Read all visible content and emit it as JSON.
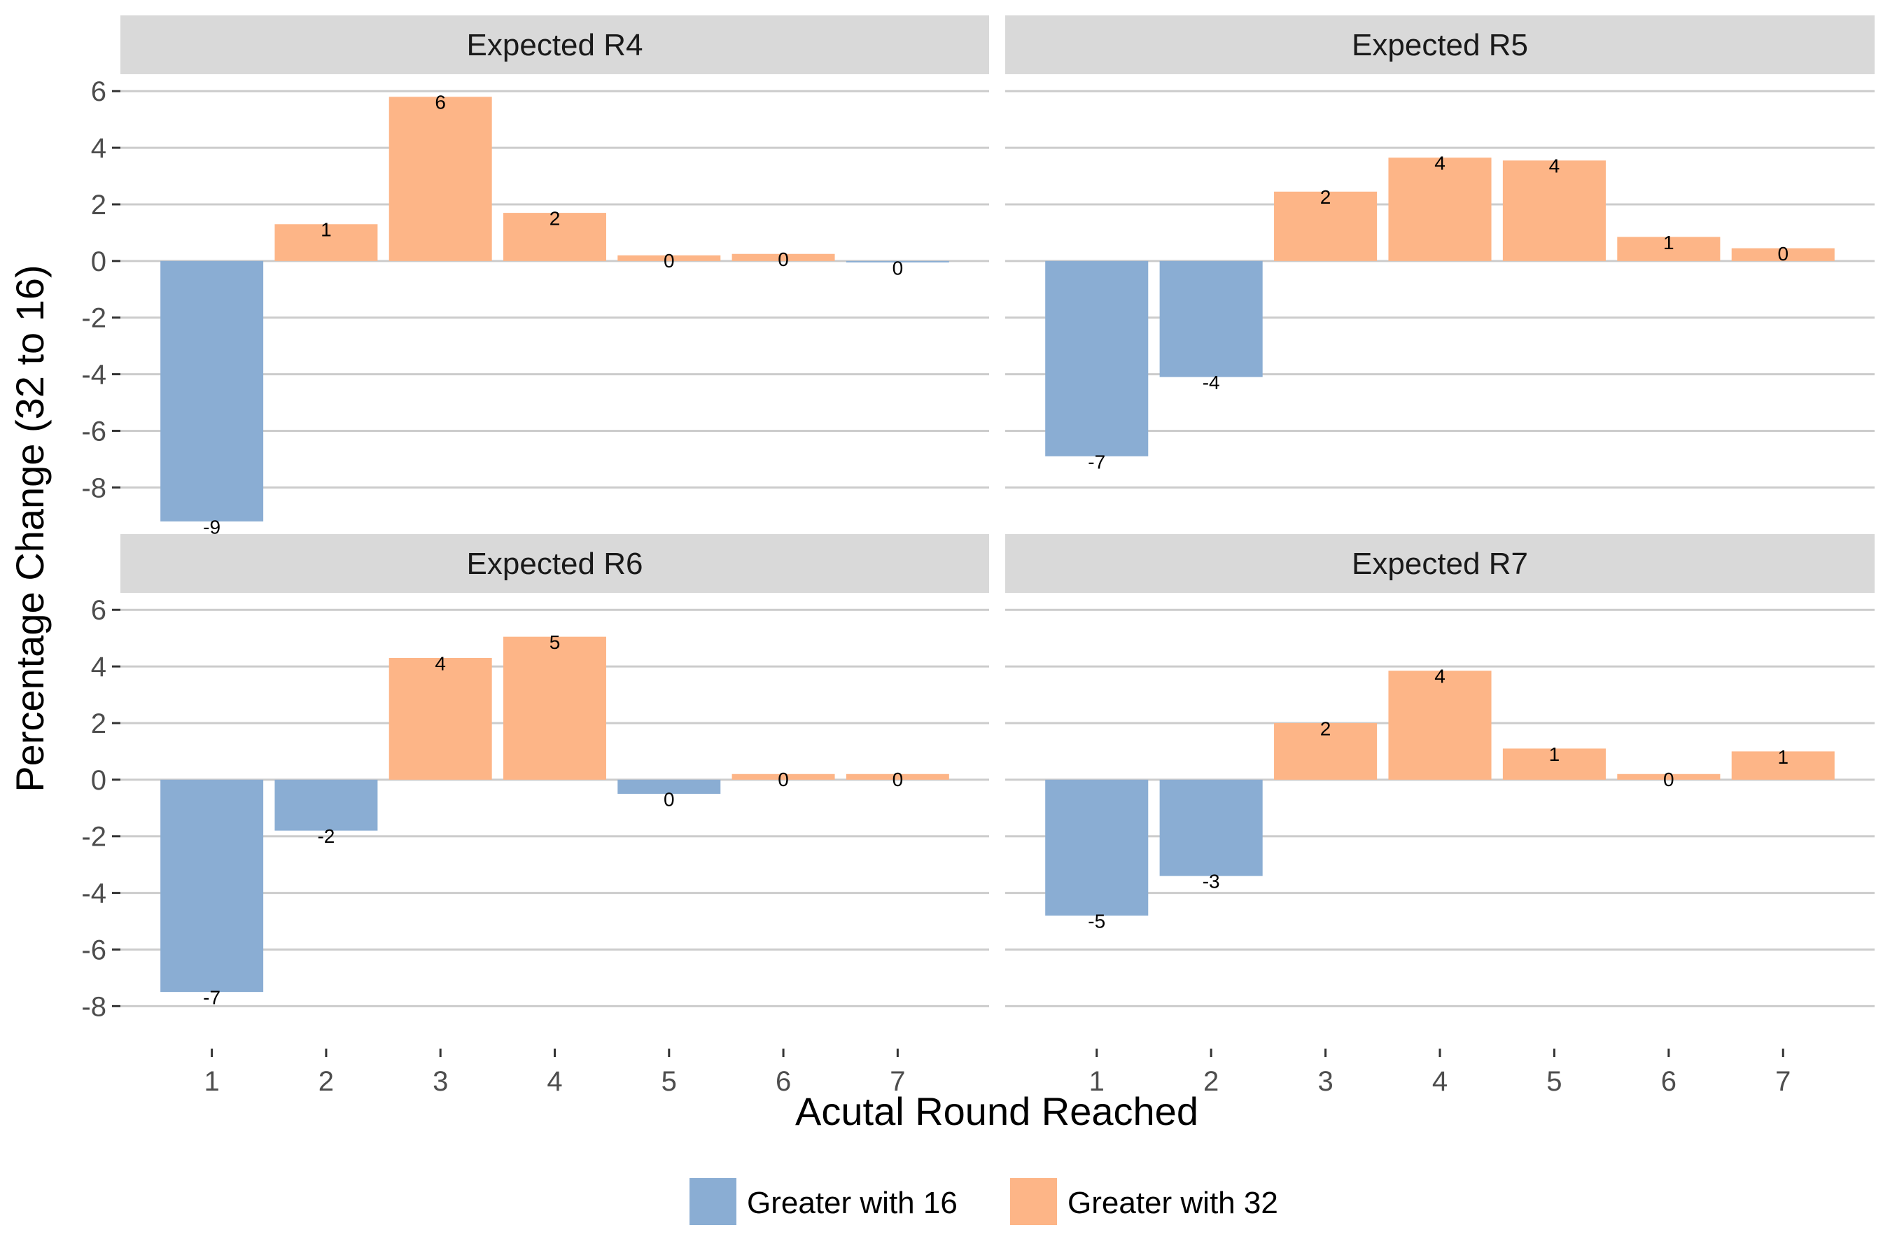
{
  "chart_data": {
    "type": "bar",
    "xlabel": "Acutal Round Reached",
    "ylabel": "Percentage Change (32 to 16)",
    "ylim": [
      -9.5,
      6.5
    ],
    "yticks": [
      6,
      4,
      2,
      0,
      -2,
      -4,
      -6,
      -8
    ],
    "categories": [
      "1",
      "2",
      "3",
      "4",
      "5",
      "6",
      "7"
    ],
    "grid": true,
    "legend_position": "bottom",
    "legend": [
      {
        "name": "Greater with 16",
        "color": "#8AADD3"
      },
      {
        "name": "Greater with 32",
        "color": "#FDB587"
      }
    ],
    "panels": [
      {
        "title": "Expected R4",
        "values": [
          -9.2,
          1.3,
          5.8,
          1.7,
          0.2,
          0.25,
          -0.05
        ],
        "labels": [
          "-9",
          "1",
          "6",
          "2",
          "0",
          "0",
          "0"
        ]
      },
      {
        "title": "Expected R5",
        "values": [
          -6.9,
          -4.1,
          2.45,
          3.65,
          3.55,
          0.85,
          0.45
        ],
        "labels": [
          "-7",
          "-4",
          "2",
          "4",
          "4",
          "1",
          "0"
        ]
      },
      {
        "title": "Expected R6",
        "values": [
          -7.5,
          -1.8,
          4.3,
          5.05,
          -0.5,
          0.2,
          0.2
        ],
        "labels": [
          "-7",
          "-2",
          "4",
          "5",
          "0",
          "0",
          "0"
        ]
      },
      {
        "title": "Expected R7",
        "values": [
          -4.8,
          -3.4,
          2.0,
          3.85,
          1.1,
          0.2,
          1.0
        ],
        "labels": [
          "-5",
          "-3",
          "2",
          "4",
          "1",
          "0",
          "1"
        ]
      }
    ]
  }
}
